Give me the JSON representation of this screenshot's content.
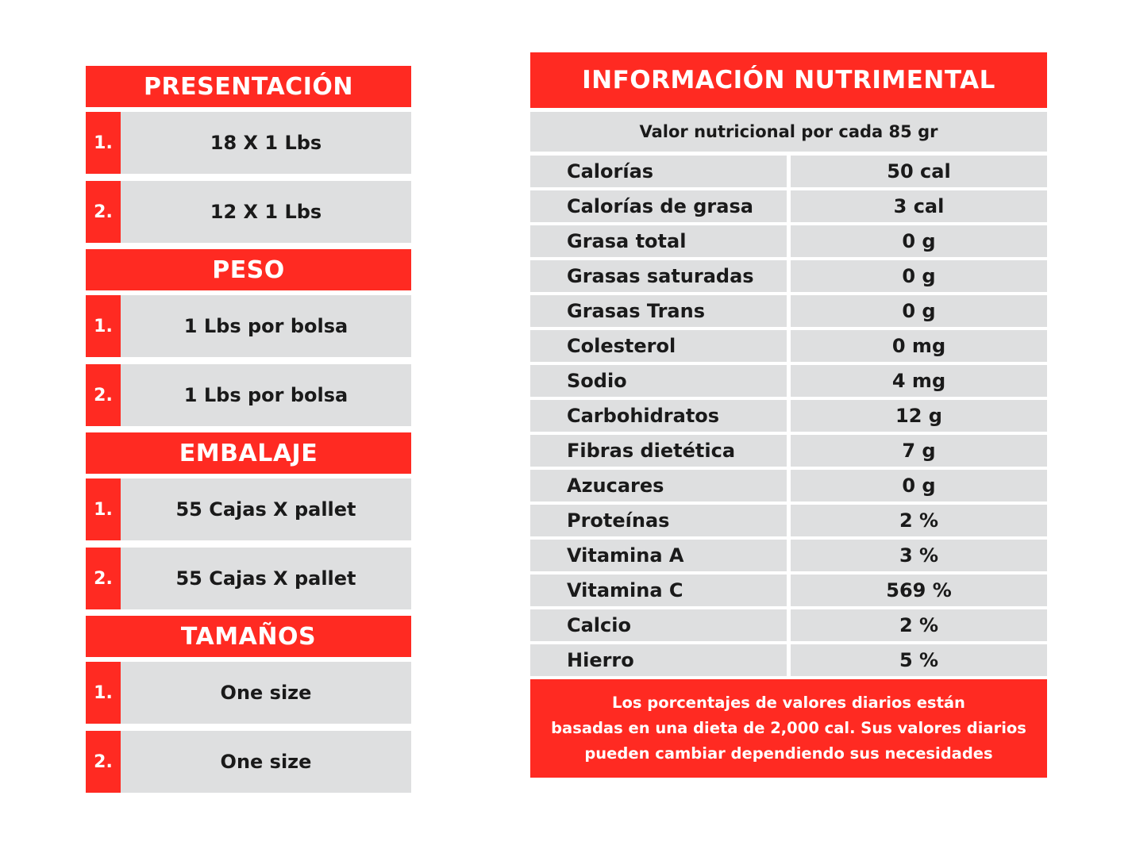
{
  "left": {
    "sections": [
      {
        "title": "PRESENTACIÓN",
        "items": [
          {
            "num": "1.",
            "value": "18 X 1 Lbs"
          },
          {
            "num": "2.",
            "value": "12 X 1 Lbs"
          }
        ]
      },
      {
        "title": "PESO",
        "items": [
          {
            "num": "1.",
            "value": "1 Lbs por bolsa"
          },
          {
            "num": "2.",
            "value": "1 Lbs por bolsa"
          }
        ]
      },
      {
        "title": "EMBALAJE",
        "items": [
          {
            "num": "1.",
            "value": "55 Cajas X pallet"
          },
          {
            "num": "2.",
            "value": "55 Cajas X pallet"
          }
        ]
      },
      {
        "title": "TAMAÑOS",
        "items": [
          {
            "num": "1.",
            "value": "One size"
          },
          {
            "num": "2.",
            "value": "One size"
          }
        ]
      }
    ]
  },
  "nutrition": {
    "title": "INFORMACIÓN NUTRIMENTAL",
    "subtitle": "Valor nutricional por cada 85 gr",
    "rows": [
      {
        "name": "Calorías",
        "value": "50 cal"
      },
      {
        "name": "Calorías de grasa",
        "value": "3 cal"
      },
      {
        "name": "Grasa total",
        "value": "0 g"
      },
      {
        "name": "Grasas saturadas",
        "value": "0 g"
      },
      {
        "name": "Grasas Trans",
        "value": "0 g"
      },
      {
        "name": "Colesterol",
        "value": "0 mg"
      },
      {
        "name": "Sodio",
        "value": "4 mg"
      },
      {
        "name": "Carbohidratos",
        "value": "12 g"
      },
      {
        "name": "Fibras dietética",
        "value": "7 g"
      },
      {
        "name": "Azucares",
        "value": "0 g"
      },
      {
        "name": "Proteínas",
        "value": "2 %"
      },
      {
        "name": "Vitamina A",
        "value": "3 %"
      },
      {
        "name": "Vitamina C",
        "value": "569 %"
      },
      {
        "name": "Calcio",
        "value": "2 %"
      },
      {
        "name": "Hierro",
        "value": "5 %"
      }
    ],
    "footer": [
      "Los porcentajes de valores diarios están",
      "basadas en una dieta de 2,000 cal. Sus valores diarios",
      "pueden cambiar dependiendo sus necesidades"
    ]
  },
  "colors": {
    "accent": "#ff2a22",
    "cell": "#dedfe0",
    "text": "#1a1a1a"
  }
}
